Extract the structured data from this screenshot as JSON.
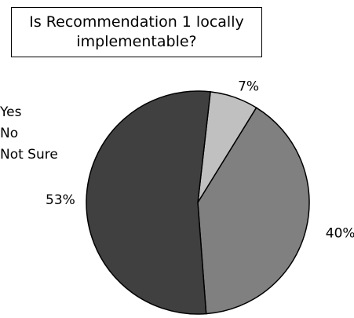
{
  "chart_data": {
    "type": "pie",
    "title": "Is Recommendation 1 locally implementable?",
    "categories": [
      "Yes",
      "No",
      "Not Sure"
    ],
    "values": [
      53,
      40,
      7
    ],
    "value_labels": [
      "53%",
      "40%",
      "7%"
    ],
    "colors": {
      "Yes": "#404040",
      "No": "#808080",
      "Not Sure": "#c0c0c0"
    },
    "legend_position": "left"
  }
}
